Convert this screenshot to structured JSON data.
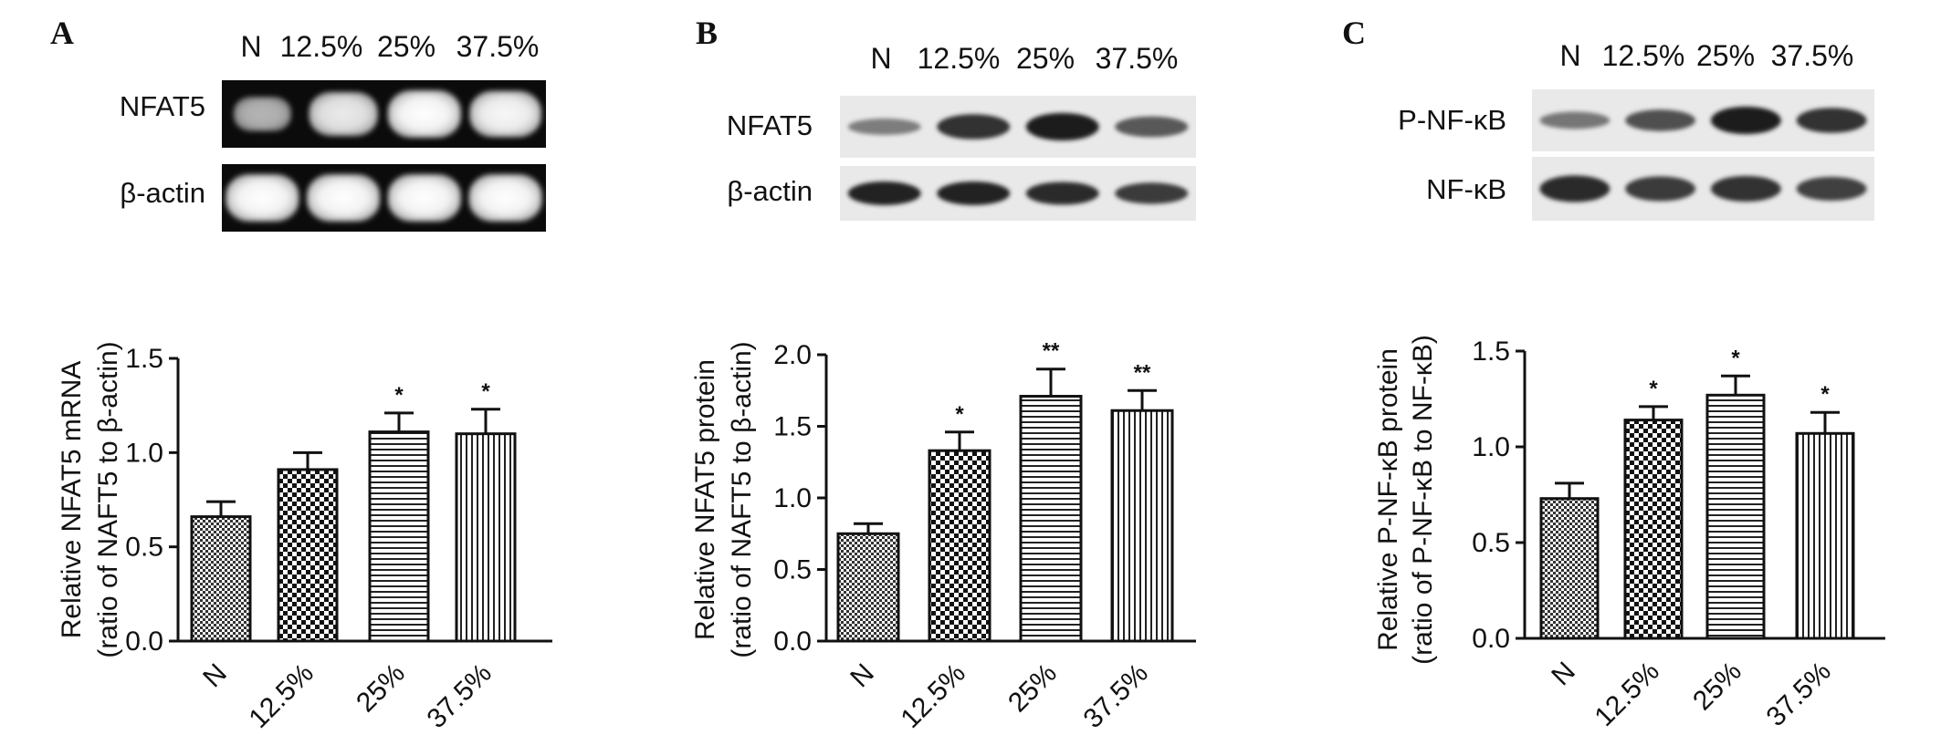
{
  "panels": [
    {
      "letter": "A",
      "lanes": [
        "N",
        "12.5%",
        "25%",
        "37.5%"
      ],
      "blot_style": "gel",
      "blots": [
        {
          "label": "NFAT5",
          "intensity": [
            0.45,
            0.85,
            1.0,
            0.95
          ]
        },
        {
          "label": "β-actin",
          "intensity": [
            1.0,
            1.0,
            1.0,
            1.0
          ]
        }
      ]
    },
    {
      "letter": "B",
      "lanes": [
        "N",
        "12.5%",
        "25%",
        "37.5%"
      ],
      "blot_style": "western",
      "blots": [
        {
          "label": "NFAT5",
          "intensity": [
            0.3,
            0.8,
            0.95,
            0.55
          ]
        },
        {
          "label": "β-actin",
          "intensity": [
            0.9,
            0.9,
            0.85,
            0.75
          ]
        }
      ]
    },
    {
      "letter": "C",
      "lanes": [
        "N",
        "12.5%",
        "25%",
        "37.5%"
      ],
      "blot_style": "western",
      "blots": [
        {
          "label": "P-NF-κB",
          "intensity": [
            0.35,
            0.6,
            0.95,
            0.8
          ]
        },
        {
          "label": "NF-κB",
          "intensity": [
            0.85,
            0.75,
            0.8,
            0.7
          ]
        }
      ]
    }
  ],
  "chart_data": [
    {
      "type": "bar",
      "categories": [
        "N",
        "12.5%",
        "25%",
        "37.5%"
      ],
      "values": [
        0.66,
        0.91,
        1.11,
        1.1
      ],
      "errors": [
        0.08,
        0.09,
        0.1,
        0.13
      ],
      "significance": [
        "",
        "",
        "*",
        "*"
      ],
      "patterns": [
        "small-checker",
        "checker",
        "horizontal",
        "vertical"
      ],
      "ylabel_line1": "Relative NFAT5 mRNA",
      "ylabel_line2": "(ratio of NAFT5 to β-actin)",
      "ylim": [
        0,
        1.5
      ],
      "yticks": [
        "0.0",
        "0.5",
        "1.0",
        "1.5"
      ]
    },
    {
      "type": "bar",
      "categories": [
        "N",
        "12.5%",
        "25%",
        "37.5%"
      ],
      "values": [
        0.75,
        1.33,
        1.71,
        1.61
      ],
      "errors": [
        0.07,
        0.13,
        0.19,
        0.14
      ],
      "significance": [
        "",
        "*",
        "**",
        "**"
      ],
      "patterns": [
        "small-checker",
        "checker",
        "horizontal",
        "vertical"
      ],
      "ylabel_line1": "Relative NFAT5 protein",
      "ylabel_line2": "(ratio of NAFT5 to β-actin)",
      "ylim": [
        0,
        2.0
      ],
      "yticks": [
        "0.0",
        "0.5",
        "1.0",
        "1.5",
        "2.0"
      ]
    },
    {
      "type": "bar",
      "categories": [
        "N",
        "12.5%",
        "25%",
        "37.5%"
      ],
      "values": [
        0.73,
        1.14,
        1.27,
        1.07
      ],
      "errors": [
        0.08,
        0.07,
        0.1,
        0.11
      ],
      "significance": [
        "",
        "*",
        "*",
        "*"
      ],
      "patterns": [
        "small-checker",
        "checker",
        "horizontal",
        "vertical"
      ],
      "ylabel_line1": "Relative P-NF-κB protein",
      "ylabel_line2": "(ratio of P-NF-κB to NF-κB)",
      "ylim": [
        0,
        1.5
      ],
      "yticks": [
        "0.0",
        "0.5",
        "1.0",
        "1.5"
      ]
    }
  ]
}
